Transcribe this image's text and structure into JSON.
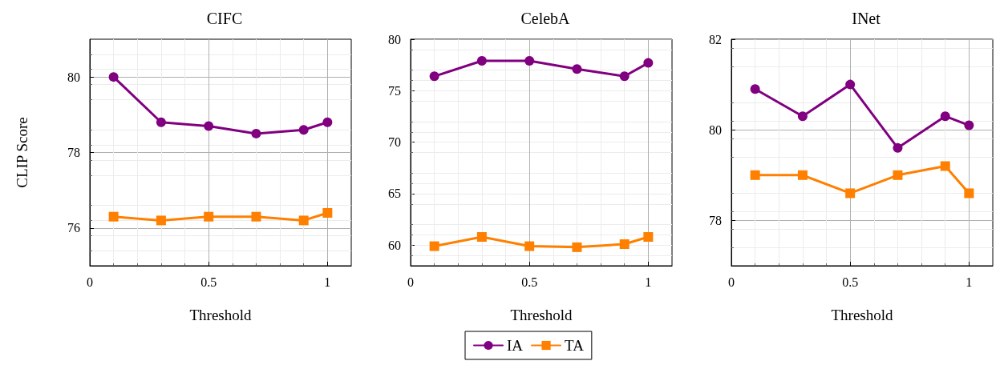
{
  "chart_data": [
    {
      "type": "line",
      "title": "CIFC",
      "xlabel": "Threshold",
      "ylabel": "CLIP Score",
      "x": [
        0.1,
        0.3,
        0.5,
        0.7,
        0.9,
        1
      ],
      "xlim": [
        0,
        1.1
      ],
      "xticks": [
        0,
        0.5,
        1
      ],
      "ylim": [
        75,
        81
      ],
      "yticks": [
        76,
        78,
        80
      ],
      "grid": true,
      "line_style": "solid",
      "series": [
        {
          "color": "#800080",
          "marker": "circle",
          "values": [
            80,
            78.8,
            78.7,
            78.5,
            78.6,
            78.8
          ]
        },
        {
          "color": "#ff8000",
          "marker": "square",
          "values": [
            76.3,
            76.2,
            76.3,
            76.3,
            76.2,
            76.4
          ]
        }
      ]
    },
    {
      "type": "line",
      "title": "CelebA",
      "xlabel": "Threshold",
      "x": [
        0.1,
        0.3,
        0.5,
        0.7,
        0.9,
        1
      ],
      "xlim": [
        0,
        1.1
      ],
      "xticks": [
        0,
        0.5,
        1
      ],
      "ylim": [
        58,
        80
      ],
      "yticks": [
        60,
        65,
        70,
        75,
        80
      ],
      "grid": true,
      "line_style": "solid",
      "legend": "bottom",
      "series": [
        {
          "name": "IA",
          "color": "#800080",
          "marker": "circle",
          "values": [
            76.4,
            77.9,
            77.9,
            77.1,
            76.4,
            77.7
          ]
        },
        {
          "name": "TA",
          "color": "#ff8000",
          "marker": "square",
          "values": [
            59.9,
            60.8,
            59.9,
            59.8,
            60.1,
            60.8
          ]
        }
      ]
    },
    {
      "type": "line",
      "title": "INet",
      "xlabel": "Threshold",
      "x": [
        0.1,
        0.3,
        0.5,
        0.7,
        0.9,
        1
      ],
      "xlim": [
        0,
        1.1
      ],
      "xticks": [
        0,
        0.5,
        1
      ],
      "ylim": [
        77,
        82
      ],
      "yticks": [
        78,
        80,
        82
      ],
      "grid": true,
      "line_style": "solid",
      "series": [
        {
          "color": "#800080",
          "marker": "circle",
          "values": [
            80.9,
            80.3,
            81.0,
            79.6,
            80.3,
            80.1
          ]
        },
        {
          "color": "#ff8000",
          "marker": "square",
          "values": [
            79.0,
            79.0,
            78.6,
            79.0,
            79.2,
            78.6
          ]
        }
      ]
    }
  ]
}
